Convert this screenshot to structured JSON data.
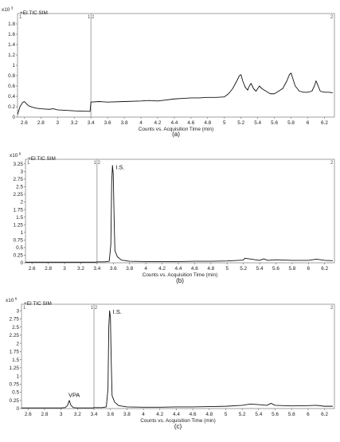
{
  "chart_data": [
    {
      "type": "line",
      "panel_label": "(a)",
      "header": "+EI TIC SIM",
      "y_multiplier": "x10",
      "y_exponent": "3",
      "xlabel": "Counts vs. Acquisition Time (min)",
      "ylabel": "",
      "segment_markers": {
        "left": "1",
        "divider": "1 2",
        "right": "2"
      },
      "divider_x": 3.4,
      "xlim": [
        2.52,
        6.32
      ],
      "ylim": [
        0,
        2.0
      ],
      "xticks": [
        "2.6",
        "2.8",
        "3",
        "3.2",
        "3.4",
        "3.6",
        "3.8",
        "4",
        "4.2",
        "4.4",
        "4.6",
        "4.8",
        "5",
        "5.2",
        "5.4",
        "5.6",
        "5.8",
        "6",
        "6.2"
      ],
      "yticks": [
        "0",
        "0.2",
        "0.4",
        "0.6",
        "0.8",
        "1",
        "1.2",
        "1.4",
        "1.6",
        "1.8"
      ],
      "annotations": [],
      "series": [
        {
          "x": [
            2.52,
            2.55,
            2.58,
            2.6,
            2.62,
            2.65,
            2.7,
            2.75,
            2.8,
            2.85,
            2.9,
            2.95,
            3.0,
            3.1,
            3.2,
            3.3,
            3.39,
            3.4,
            3.5,
            3.6,
            3.8,
            4.0,
            4.1,
            4.2,
            4.3,
            4.4,
            4.5,
            4.6,
            4.7,
            4.8,
            4.9,
            5.0,
            5.05,
            5.1,
            5.15,
            5.18,
            5.2,
            5.22,
            5.25,
            5.28,
            5.3,
            5.32,
            5.35,
            5.38,
            5.42,
            5.45,
            5.5,
            5.55,
            5.6,
            5.65,
            5.7,
            5.75,
            5.78,
            5.8,
            5.82,
            5.85,
            5.9,
            5.95,
            6.0,
            6.05,
            6.08,
            6.1,
            6.12,
            6.15,
            6.2,
            6.25,
            6.3
          ],
          "y": [
            0.05,
            0.2,
            0.28,
            0.3,
            0.27,
            0.22,
            0.19,
            0.17,
            0.16,
            0.155,
            0.15,
            0.16,
            0.14,
            0.13,
            0.12,
            0.115,
            0.11,
            0.29,
            0.3,
            0.29,
            0.3,
            0.31,
            0.32,
            0.31,
            0.33,
            0.35,
            0.36,
            0.37,
            0.37,
            0.38,
            0.38,
            0.39,
            0.45,
            0.55,
            0.7,
            0.8,
            0.82,
            0.7,
            0.58,
            0.52,
            0.6,
            0.65,
            0.55,
            0.5,
            0.6,
            0.55,
            0.5,
            0.45,
            0.45,
            0.5,
            0.55,
            0.7,
            0.82,
            0.85,
            0.75,
            0.6,
            0.5,
            0.48,
            0.48,
            0.5,
            0.6,
            0.7,
            0.62,
            0.5,
            0.48,
            0.48,
            0.47
          ]
        }
      ]
    },
    {
      "type": "line",
      "panel_label": "(b)",
      "header": "+EI TIC SIM",
      "y_multiplier": "x10",
      "y_exponent": "6",
      "xlabel": "Counts vs. Acquisition Time (min)",
      "ylabel": "",
      "segment_markers": {
        "left": "1",
        "divider": "1 2",
        "right": "2"
      },
      "divider_x": 3.4,
      "xlim": [
        2.52,
        6.32
      ],
      "ylim": [
        0,
        3.4
      ],
      "xticks": [
        "2.6",
        "2.8",
        "3",
        "3.2",
        "3.4",
        "3.6",
        "3.8",
        "4",
        "4.2",
        "4.4",
        "4.6",
        "4.8",
        "5",
        "5.2",
        "5.4",
        "5.6",
        "5.8",
        "6",
        "6.2"
      ],
      "yticks": [
        "0",
        "0.25",
        "0.5",
        "0.75",
        "1",
        "1.25",
        "1.5",
        "1.75",
        "2",
        "2.25",
        "2.5",
        "2.75",
        "3",
        "3.25"
      ],
      "annotations": [
        {
          "text": "I.S.",
          "x": 3.59,
          "y": 3.18
        }
      ],
      "series": [
        {
          "x": [
            2.52,
            2.6,
            2.8,
            3.0,
            3.2,
            3.39,
            3.4,
            3.5,
            3.55,
            3.57,
            3.58,
            3.59,
            3.6,
            3.61,
            3.62,
            3.65,
            3.7,
            3.8,
            4.0,
            4.2,
            4.4,
            4.6,
            4.8,
            5.0,
            5.2,
            5.22,
            5.4,
            5.45,
            5.5,
            5.6,
            5.8,
            6.0,
            6.1,
            6.2,
            6.3
          ],
          "y": [
            0.02,
            0.02,
            0.02,
            0.02,
            0.02,
            0.02,
            0.03,
            0.03,
            0.05,
            0.6,
            2.6,
            3.2,
            2.9,
            1.5,
            0.4,
            0.2,
            0.09,
            0.05,
            0.04,
            0.04,
            0.04,
            0.05,
            0.05,
            0.06,
            0.09,
            0.15,
            0.08,
            0.13,
            0.08,
            0.1,
            0.08,
            0.08,
            0.12,
            0.08,
            0.07
          ]
        }
      ]
    },
    {
      "type": "line",
      "panel_label": "(c)",
      "header": "+EI TIC SIM",
      "y_multiplier": "x10",
      "y_exponent": "6",
      "xlabel": "Counts vs. Acquisition Time (min)",
      "ylabel": "",
      "segment_markers": {
        "left": "1",
        "divider": "1 2",
        "right": "2"
      },
      "divider_x": 3.4,
      "xlim": [
        2.52,
        6.32
      ],
      "ylim": [
        0,
        3.2
      ],
      "xticks": [
        "2.6",
        "2.8",
        "3",
        "3.2",
        "3.4",
        "3.6",
        "3.8",
        "4",
        "4.2",
        "4.4",
        "4.6",
        "4.8",
        "5",
        "5.2",
        "5.4",
        "5.6",
        "5.8",
        "6",
        "6.2"
      ],
      "yticks": [
        "0",
        "0.25",
        "0.5",
        "0.75",
        "1",
        "1.25",
        "1.5",
        "1.75",
        "2",
        "2.25",
        "2.5",
        "2.75",
        "3"
      ],
      "annotations": [
        {
          "text": "VPA",
          "x": 3.1,
          "y": 0.26
        },
        {
          "text": "I.S.",
          "x": 3.59,
          "y": 3.0
        }
      ],
      "series": [
        {
          "x": [
            2.52,
            2.6,
            2.8,
            3.0,
            3.05,
            3.08,
            3.1,
            3.12,
            3.15,
            3.2,
            3.39,
            3.4,
            3.5,
            3.55,
            3.57,
            3.58,
            3.59,
            3.6,
            3.61,
            3.62,
            3.65,
            3.7,
            3.8,
            4.0,
            4.2,
            4.4,
            4.6,
            4.8,
            5.0,
            5.2,
            5.3,
            5.4,
            5.5,
            5.55,
            5.6,
            5.8,
            6.0,
            6.1,
            6.2,
            6.3
          ],
          "y": [
            0.02,
            0.02,
            0.02,
            0.02,
            0.03,
            0.1,
            0.25,
            0.1,
            0.03,
            0.02,
            0.02,
            0.03,
            0.03,
            0.05,
            0.6,
            2.5,
            3.0,
            2.8,
            1.4,
            0.4,
            0.2,
            0.09,
            0.05,
            0.04,
            0.04,
            0.05,
            0.05,
            0.06,
            0.07,
            0.1,
            0.14,
            0.12,
            0.1,
            0.16,
            0.1,
            0.08,
            0.09,
            0.1,
            0.07,
            0.07
          ]
        }
      ]
    }
  ]
}
